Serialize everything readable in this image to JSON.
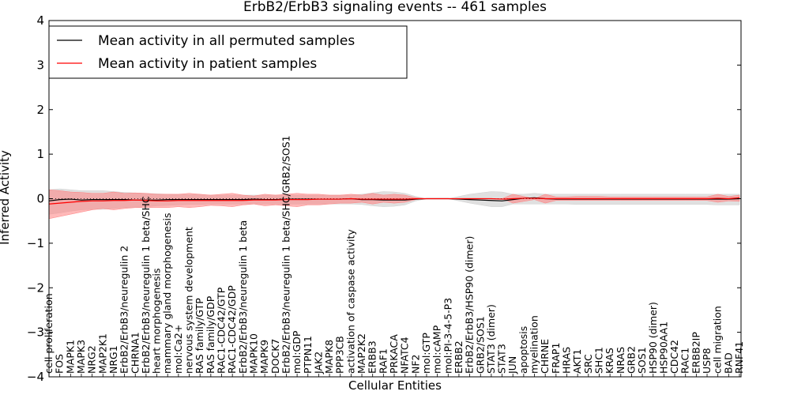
{
  "chart_data": {
    "type": "line",
    "title": "ErbB2/ErbB3 signaling events -- 461 samples",
    "xlabel": "Cellular Entities",
    "ylabel": "Inferred Activity",
    "ylim": [
      -4,
      4
    ],
    "yticks": [
      -4,
      -3,
      -2,
      -1,
      0,
      1,
      2,
      3,
      4
    ],
    "ytick_labels": [
      "−4",
      "−3",
      "−2",
      "−1",
      "0",
      "1",
      "2",
      "3",
      "4"
    ],
    "legend_position": "top-left",
    "categories": [
      "cell proliferation",
      "FOS",
      "MAPK1",
      "MAPK3",
      "NRG2",
      "MAP2K1",
      "NRG1",
      "ErbB2/ErbB3/neuregulin 2",
      "CHRNA1",
      "ErbB2/ErbB3/neuregulin 1 beta/SHC",
      "heart morphogenesis",
      "mammary gland morphogenesis",
      "mol:Ca2+",
      "nervous system development",
      "RAS family/GTP",
      "RAS family/GDP",
      "RAC1-CDC42/GTP",
      "RAC1-CDC42/GDP",
      "ErbB2/ErbB3/neuregulin 1 beta",
      "MAPK10",
      "MAPK9",
      "DOCK7",
      "ErbB2/ErbB3/neuregulin 1 beta/SHC/GRB2/SOS1",
      "mol:GDP",
      "PTPN11",
      "JAK2",
      "MAPK8",
      "PPP3CB",
      "activation of caspase activity",
      "MAP2K2",
      "ERBB3",
      "RAF1",
      "PRKACA",
      "NFATC4",
      "NF2",
      "mol:GTP",
      "mol:cAMP",
      "mol:PI-3-4-5-P3",
      "ERBB2",
      "ErbB2/ErbB3/HSP90 (dimer)",
      "GRB2/SOS1",
      "STAT3 (dimer)",
      "STAT3",
      "JUN",
      "apoptosis",
      "myelination",
      "CHRNE",
      "FRAP1",
      "HRAS",
      "AKT1",
      "SRC",
      "SHC1",
      "KRAS",
      "NRAS",
      "GRB2",
      "SOS1",
      "HSP90 (dimer)",
      "HSP90AA1",
      "CDC42",
      "RAC1",
      "ERBB2IP",
      "USP8",
      "cell migration",
      "BAD",
      "RNF41"
    ],
    "series": [
      {
        "name": "Mean activity in all permuted samples",
        "color": "#000000",
        "values": [
          -0.05,
          -0.02,
          -0.01,
          -0.03,
          -0.02,
          -0.02,
          -0.02,
          -0.02,
          -0.03,
          -0.03,
          -0.03,
          -0.02,
          -0.02,
          -0.02,
          -0.02,
          -0.02,
          -0.02,
          -0.02,
          -0.02,
          -0.01,
          -0.02,
          -0.02,
          -0.01,
          -0.01,
          -0.01,
          -0.01,
          -0.01,
          -0.01,
          0.0,
          -0.02,
          -0.02,
          -0.03,
          -0.03,
          -0.03,
          -0.01,
          0.0,
          0.0,
          0.0,
          -0.01,
          -0.02,
          -0.03,
          -0.04,
          -0.05,
          -0.02,
          0.01,
          0.02,
          0.0,
          -0.01,
          -0.01,
          -0.01,
          -0.01,
          -0.01,
          -0.01,
          -0.01,
          -0.01,
          -0.01,
          -0.01,
          -0.01,
          -0.01,
          -0.01,
          -0.01,
          -0.01,
          -0.01,
          -0.01,
          0.0
        ],
        "band_upper": [
          0.2,
          0.22,
          0.2,
          0.18,
          0.18,
          0.18,
          0.16,
          0.14,
          0.13,
          0.12,
          0.11,
          0.1,
          0.09,
          0.09,
          0.09,
          0.08,
          0.08,
          0.08,
          0.08,
          0.08,
          0.08,
          0.08,
          0.08,
          0.08,
          0.08,
          0.08,
          0.08,
          0.08,
          0.08,
          0.1,
          0.13,
          0.16,
          0.15,
          0.12,
          0.05,
          0.0,
          0.0,
          0.0,
          0.05,
          0.1,
          0.13,
          0.16,
          0.15,
          0.1,
          0.1,
          0.12,
          0.1,
          0.1,
          0.1,
          0.1,
          0.1,
          0.1,
          0.1,
          0.1,
          0.1,
          0.1,
          0.1,
          0.1,
          0.1,
          0.1,
          0.1,
          0.1,
          0.1,
          0.1,
          0.1
        ],
        "band_lower": [
          -0.35,
          -0.32,
          -0.28,
          -0.25,
          -0.24,
          -0.24,
          -0.22,
          -0.2,
          -0.2,
          -0.18,
          -0.16,
          -0.15,
          -0.14,
          -0.13,
          -0.13,
          -0.12,
          -0.12,
          -0.12,
          -0.12,
          -0.12,
          -0.12,
          -0.12,
          -0.12,
          -0.12,
          -0.12,
          -0.12,
          -0.12,
          -0.12,
          -0.12,
          -0.13,
          -0.16,
          -0.18,
          -0.17,
          -0.14,
          -0.05,
          0.0,
          0.0,
          0.0,
          -0.05,
          -0.1,
          -0.14,
          -0.18,
          -0.18,
          -0.12,
          -0.12,
          -0.12,
          -0.12,
          -0.12,
          -0.12,
          -0.13,
          -0.13,
          -0.13,
          -0.13,
          -0.13,
          -0.13,
          -0.13,
          -0.13,
          -0.13,
          -0.13,
          -0.13,
          -0.13,
          -0.13,
          -0.14,
          -0.14,
          -0.14
        ]
      },
      {
        "name": "Mean activity in patient samples",
        "color": "#ff0000",
        "band_color": "#ff8080",
        "values": [
          -0.12,
          -0.1,
          -0.08,
          -0.06,
          -0.05,
          -0.05,
          -0.04,
          -0.04,
          -0.03,
          -0.04,
          -0.05,
          -0.05,
          -0.04,
          -0.04,
          -0.04,
          -0.04,
          -0.04,
          -0.04,
          -0.04,
          -0.03,
          -0.03,
          -0.03,
          -0.02,
          -0.02,
          -0.02,
          -0.01,
          -0.01,
          -0.01,
          0.0,
          -0.01,
          -0.01,
          -0.01,
          -0.01,
          -0.01,
          0.0,
          0.0,
          0.0,
          0.0,
          0.0,
          0.0,
          0.0,
          0.0,
          -0.01,
          0.0,
          0.01,
          0.01,
          0.0,
          0.0,
          0.0,
          0.0,
          0.0,
          0.0,
          0.0,
          0.0,
          0.0,
          0.0,
          0.0,
          0.0,
          0.0,
          0.0,
          0.0,
          0.0,
          0.01,
          0.0,
          0.02
        ],
        "band_upper": [
          0.2,
          0.18,
          0.15,
          0.14,
          0.12,
          0.12,
          0.15,
          0.12,
          0.13,
          0.12,
          0.1,
          0.1,
          0.1,
          0.12,
          0.1,
          0.08,
          0.1,
          0.12,
          0.08,
          0.06,
          0.1,
          0.08,
          0.1,
          0.12,
          0.1,
          0.1,
          0.08,
          0.08,
          0.1,
          0.08,
          0.12,
          0.08,
          0.1,
          0.08,
          0.02,
          0.0,
          0.0,
          0.0,
          0.0,
          0.0,
          0.0,
          0.0,
          0.0,
          0.1,
          0.05,
          0.0,
          0.1,
          0.04,
          0.04,
          0.05,
          0.05,
          0.05,
          0.04,
          0.04,
          0.04,
          0.04,
          0.04,
          0.04,
          0.04,
          0.04,
          0.04,
          0.04,
          0.1,
          0.05,
          0.08
        ],
        "band_lower": [
          -0.45,
          -0.4,
          -0.35,
          -0.3,
          -0.25,
          -0.22,
          -0.25,
          -0.22,
          -0.2,
          -0.2,
          -0.2,
          -0.2,
          -0.18,
          -0.2,
          -0.18,
          -0.15,
          -0.16,
          -0.18,
          -0.14,
          -0.12,
          -0.16,
          -0.14,
          -0.16,
          -0.18,
          -0.14,
          -0.14,
          -0.12,
          -0.1,
          -0.1,
          -0.08,
          -0.12,
          -0.08,
          -0.1,
          -0.08,
          -0.02,
          0.0,
          0.0,
          0.0,
          0.0,
          0.0,
          0.0,
          0.0,
          0.0,
          -0.1,
          -0.06,
          -0.02,
          -0.1,
          -0.04,
          -0.04,
          -0.04,
          -0.04,
          -0.04,
          -0.04,
          -0.04,
          -0.04,
          -0.04,
          -0.04,
          -0.04,
          -0.04,
          -0.04,
          -0.04,
          -0.04,
          -0.08,
          -0.05,
          -0.06
        ]
      }
    ]
  }
}
